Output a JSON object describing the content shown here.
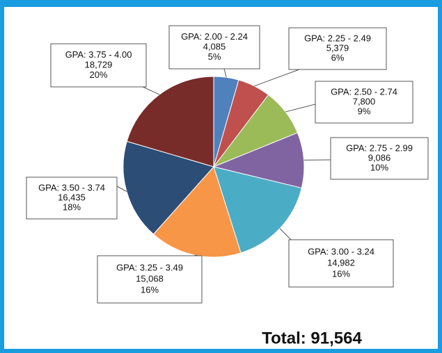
{
  "chart_data": {
    "type": "pie",
    "categories": [
      "GPA: 2.00 - 2.24",
      "GPA: 2.25 - 2.49",
      "GPA: 2.50 - 2.74",
      "GPA: 2.75 - 2.99",
      "GPA: 3.00 - 3.24",
      "GPA: 3.25 - 3.49",
      "GPA: 3.50 - 3.74",
      "GPA: 3.75 - 4.00"
    ],
    "values": [
      4085,
      5379,
      7800,
      9086,
      14982,
      15068,
      16435,
      18729
    ],
    "value_labels": [
      "4,085",
      "5,379",
      "7,800",
      "9,086",
      "14,982",
      "15,068",
      "16,435",
      "18,729"
    ],
    "percentages": [
      5,
      6,
      9,
      10,
      16,
      16,
      18,
      20
    ],
    "percentage_labels": [
      "5%",
      "6%",
      "9%",
      "10%",
      "16%",
      "16%",
      "18%",
      "20%"
    ],
    "colors": [
      "#4f81bd",
      "#c0504d",
      "#9bbb59",
      "#8064a2",
      "#4bacc6",
      "#f79646",
      "#2c4d75",
      "#772c2a"
    ],
    "total": "Total: 91,564"
  }
}
